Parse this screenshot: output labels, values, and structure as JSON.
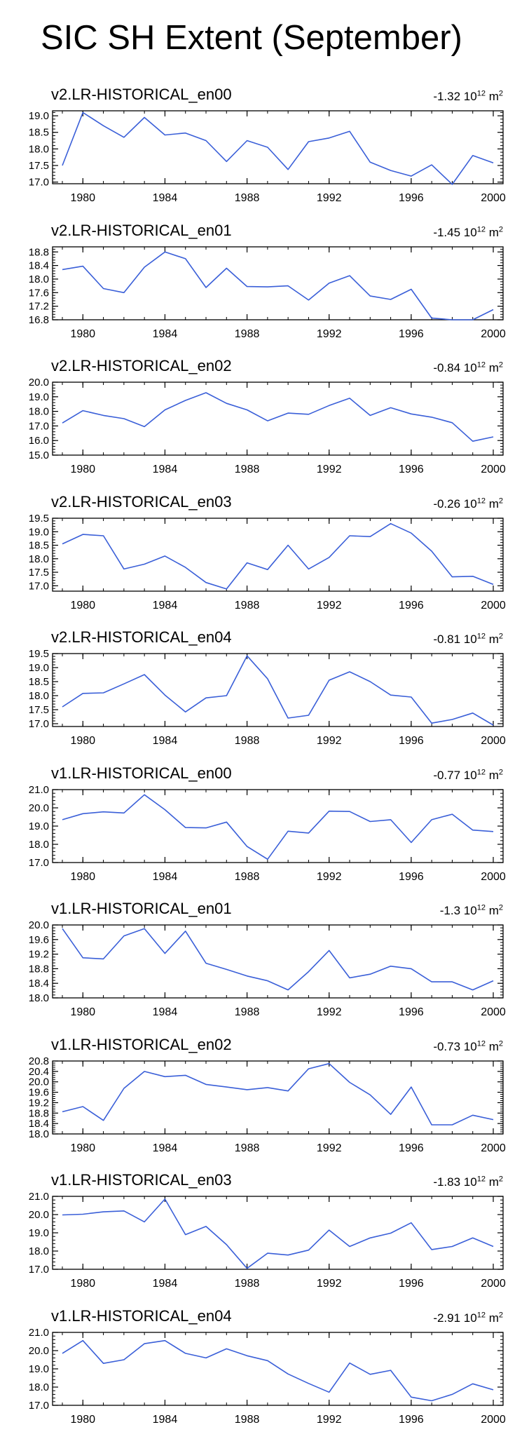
{
  "title": "SIC SH Extent (September)",
  "series_color": "#3a5fd8",
  "chart_data": [
    {
      "type": "line",
      "title": "v2.LR-HISTORICAL_en00",
      "trend": "-1.32",
      "trend_unit": "10",
      "trend_exp": "12",
      "trend_suffix": "m",
      "trend_suffix_exp": "2",
      "ylim": [
        16.95,
        19.15
      ],
      "yticks": [
        "19.0",
        "18.5",
        "18.0",
        "17.5",
        "17.0"
      ],
      "xticks": [
        "1980",
        "1984",
        "1988",
        "1992",
        "1996",
        "2000"
      ],
      "xlim": [
        1979,
        2000
      ],
      "x": [
        1979,
        1980,
        1981,
        1982,
        1983,
        1984,
        1985,
        1986,
        1987,
        1988,
        1989,
        1990,
        1991,
        1992,
        1993,
        1994,
        1995,
        1996,
        1997,
        1998,
        1999,
        2000
      ],
      "values": [
        17.5,
        19.1,
        18.7,
        18.35,
        18.95,
        18.42,
        18.48,
        18.25,
        17.62,
        18.25,
        18.05,
        17.38,
        18.22,
        18.33,
        18.53,
        17.6,
        17.35,
        17.18,
        17.52,
        16.93,
        17.8,
        17.58
      ]
    },
    {
      "type": "line",
      "title": "v2.LR-HISTORICAL_en01",
      "trend": "-1.45",
      "trend_unit": "10",
      "trend_exp": "12",
      "trend_suffix": "m",
      "trend_suffix_exp": "2",
      "ylim": [
        16.8,
        18.95
      ],
      "yticks": [
        "18.8",
        "18.4",
        "18.0",
        "17.6",
        "17.2",
        "16.8"
      ],
      "xticks": [
        "1980",
        "1984",
        "1988",
        "1992",
        "1996",
        "2000"
      ],
      "xlim": [
        1979,
        2000
      ],
      "x": [
        1979,
        1980,
        1981,
        1982,
        1983,
        1984,
        1985,
        1986,
        1987,
        1988,
        1989,
        1990,
        1991,
        1992,
        1993,
        1994,
        1995,
        1996,
        1997,
        1998,
        1999,
        2000
      ],
      "values": [
        18.28,
        18.38,
        17.72,
        17.6,
        18.35,
        18.8,
        18.6,
        17.75,
        18.32,
        17.78,
        17.77,
        17.8,
        17.38,
        17.88,
        18.1,
        17.5,
        17.4,
        17.7,
        16.85,
        16.8,
        16.8,
        17.1
      ]
    },
    {
      "type": "line",
      "title": "v2.LR-HISTORICAL_en02",
      "trend": "-0.84",
      "trend_unit": "10",
      "trend_exp": "12",
      "trend_suffix": "m",
      "trend_suffix_exp": "2",
      "ylim": [
        15.0,
        20.0
      ],
      "yticks": [
        "20.0",
        "19.0",
        "18.0",
        "17.0",
        "16.0",
        "15.0"
      ],
      "xticks": [
        "1980",
        "1984",
        "1988",
        "1992",
        "1996",
        "2000"
      ],
      "xlim": [
        1979,
        2000
      ],
      "x": [
        1979,
        1980,
        1981,
        1982,
        1983,
        1984,
        1985,
        1986,
        1987,
        1988,
        1989,
        1990,
        1991,
        1992,
        1993,
        1994,
        1995,
        1996,
        1997,
        1998,
        1999,
        2000
      ],
      "values": [
        17.2,
        18.05,
        17.72,
        17.5,
        16.95,
        18.1,
        18.75,
        19.28,
        18.55,
        18.1,
        17.35,
        17.88,
        17.8,
        18.4,
        18.9,
        17.72,
        18.25,
        17.82,
        17.6,
        17.22,
        15.95,
        16.25
      ]
    },
    {
      "type": "line",
      "title": "v2.LR-HISTORICAL_en03",
      "trend": "-0.26",
      "trend_unit": "10",
      "trend_exp": "12",
      "trend_suffix": "m",
      "trend_suffix_exp": "2",
      "ylim": [
        16.8,
        19.5
      ],
      "yticks": [
        "19.5",
        "19.0",
        "18.5",
        "18.0",
        "17.5",
        "17.0"
      ],
      "xticks": [
        "1980",
        "1984",
        "1988",
        "1992",
        "1996",
        "2000"
      ],
      "xlim": [
        1979,
        2000
      ],
      "x": [
        1979,
        1980,
        1981,
        1982,
        1983,
        1984,
        1985,
        1986,
        1987,
        1988,
        1989,
        1990,
        1991,
        1992,
        1993,
        1994,
        1995,
        1996,
        1997,
        1998,
        1999,
        2000
      ],
      "values": [
        18.55,
        18.9,
        18.85,
        17.62,
        17.8,
        18.1,
        17.68,
        17.12,
        16.88,
        17.85,
        17.6,
        18.5,
        17.62,
        18.05,
        18.85,
        18.82,
        19.3,
        18.95,
        18.28,
        17.33,
        17.35,
        17.05
      ]
    },
    {
      "type": "line",
      "title": "v2.LR-HISTORICAL_en04",
      "trend": "-0.81",
      "trend_unit": "10",
      "trend_exp": "12",
      "trend_suffix": "m",
      "trend_suffix_exp": "2",
      "ylim": [
        16.9,
        19.5
      ],
      "yticks": [
        "19.5",
        "19.0",
        "18.5",
        "18.0",
        "17.5",
        "17.0"
      ],
      "xticks": [
        "1980",
        "1984",
        "1988",
        "1992",
        "1996",
        "2000"
      ],
      "xlim": [
        1979,
        2000
      ],
      "x": [
        1979,
        1980,
        1981,
        1982,
        1983,
        1984,
        1985,
        1986,
        1987,
        1988,
        1989,
        1990,
        1991,
        1992,
        1993,
        1994,
        1995,
        1996,
        1997,
        1998,
        1999,
        2000
      ],
      "values": [
        17.6,
        18.08,
        18.1,
        18.42,
        18.75,
        18.02,
        17.42,
        17.92,
        18.0,
        19.42,
        18.6,
        17.2,
        17.3,
        18.55,
        18.85,
        18.5,
        18.02,
        17.95,
        17.02,
        17.15,
        17.38,
        16.95
      ]
    },
    {
      "type": "line",
      "title": "v1.LR-HISTORICAL_en00",
      "trend": "-0.77",
      "trend_unit": "10",
      "trend_exp": "12",
      "trend_suffix": "m",
      "trend_suffix_exp": "2",
      "ylim": [
        17.0,
        21.0
      ],
      "yticks": [
        "21.0",
        "20.0",
        "19.0",
        "18.0",
        "17.0"
      ],
      "xticks": [
        "1980",
        "1984",
        "1988",
        "1992",
        "1996",
        "2000"
      ],
      "xlim": [
        1979,
        2000
      ],
      "x": [
        1979,
        1980,
        1981,
        1982,
        1983,
        1984,
        1985,
        1986,
        1987,
        1988,
        1989,
        1990,
        1991,
        1992,
        1993,
        1994,
        1995,
        1996,
        1997,
        1998,
        1999,
        2000
      ],
      "values": [
        19.35,
        19.68,
        19.78,
        19.72,
        20.72,
        19.9,
        18.92,
        18.9,
        19.22,
        17.88,
        17.18,
        18.72,
        18.62,
        19.82,
        19.8,
        19.25,
        19.35,
        18.1,
        19.35,
        19.65,
        18.78,
        18.7
      ]
    },
    {
      "type": "line",
      "title": "v1.LR-HISTORICAL_en01",
      "trend": "-1.3",
      "trend_unit": "10",
      "trend_exp": "12",
      "trend_suffix": "m",
      "trend_suffix_exp": "2",
      "ylim": [
        18.0,
        20.0
      ],
      "yticks": [
        "20.0",
        "19.6",
        "19.2",
        "18.8",
        "18.4",
        "18.0"
      ],
      "xticks": [
        "1980",
        "1984",
        "1988",
        "1992",
        "1996",
        "2000"
      ],
      "xlim": [
        1979,
        2000
      ],
      "x": [
        1979,
        1980,
        1981,
        1982,
        1983,
        1984,
        1985,
        1986,
        1987,
        1988,
        1989,
        1990,
        1991,
        1992,
        1993,
        1994,
        1995,
        1996,
        1997,
        1998,
        1999,
        2000
      ],
      "values": [
        19.9,
        19.1,
        19.07,
        19.7,
        19.9,
        19.22,
        19.83,
        18.95,
        18.78,
        18.6,
        18.47,
        18.22,
        18.72,
        19.3,
        18.55,
        18.65,
        18.87,
        18.8,
        18.44,
        18.44,
        18.22,
        18.47
      ]
    },
    {
      "type": "line",
      "title": "v1.LR-HISTORICAL_en02",
      "trend": "-0.73",
      "trend_unit": "10",
      "trend_exp": "12",
      "trend_suffix": "m",
      "trend_suffix_exp": "2",
      "ylim": [
        18.0,
        20.8
      ],
      "yticks": [
        "20.8",
        "20.4",
        "20.0",
        "19.6",
        "19.2",
        "18.8",
        "18.4",
        "18.0"
      ],
      "xticks": [
        "1980",
        "1984",
        "1988",
        "1992",
        "1996",
        "2000"
      ],
      "xlim": [
        1979,
        2000
      ],
      "x": [
        1979,
        1980,
        1981,
        1982,
        1983,
        1984,
        1985,
        1986,
        1987,
        1988,
        1989,
        1990,
        1991,
        1992,
        1993,
        1994,
        1995,
        1996,
        1997,
        1998,
        1999,
        2000
      ],
      "values": [
        18.85,
        19.05,
        18.52,
        19.75,
        20.4,
        20.2,
        20.25,
        19.9,
        19.8,
        19.7,
        19.78,
        19.65,
        20.5,
        20.7,
        19.98,
        19.5,
        18.75,
        19.8,
        18.35,
        18.35,
        18.72,
        18.55
      ]
    },
    {
      "type": "line",
      "title": "v1.LR-HISTORICAL_en03",
      "trend": "-1.83",
      "trend_unit": "10",
      "trend_exp": "12",
      "trend_suffix": "m",
      "trend_suffix_exp": "2",
      "ylim": [
        17.0,
        21.0
      ],
      "yticks": [
        "21.0",
        "20.0",
        "19.0",
        "18.0",
        "17.0"
      ],
      "xticks": [
        "1980",
        "1984",
        "1988",
        "1992",
        "1996",
        "2000"
      ],
      "xlim": [
        1979,
        2000
      ],
      "x": [
        1979,
        1980,
        1981,
        1982,
        1983,
        1984,
        1985,
        1986,
        1987,
        1988,
        1989,
        1990,
        1991,
        1992,
        1993,
        1994,
        1995,
        1996,
        1997,
        1998,
        1999,
        2000
      ],
      "values": [
        19.98,
        20.02,
        20.15,
        20.2,
        19.6,
        20.85,
        18.9,
        19.35,
        18.35,
        17.05,
        17.88,
        17.78,
        18.05,
        19.15,
        18.25,
        18.72,
        18.98,
        19.55,
        18.08,
        18.25,
        18.72,
        18.25
      ]
    },
    {
      "type": "line",
      "title": "v1.LR-HISTORICAL_en04",
      "trend": "-2.91",
      "trend_unit": "10",
      "trend_exp": "12",
      "trend_suffix": "m",
      "trend_suffix_exp": "2",
      "ylim": [
        17.0,
        21.0
      ],
      "yticks": [
        "21.0",
        "20.0",
        "19.0",
        "18.0",
        "17.0"
      ],
      "xticks": [
        "1980",
        "1984",
        "1988",
        "1992",
        "1996",
        "2000"
      ],
      "xlim": [
        1979,
        2000
      ],
      "x": [
        1979,
        1980,
        1981,
        1982,
        1983,
        1984,
        1985,
        1986,
        1987,
        1988,
        1989,
        1990,
        1991,
        1992,
        1993,
        1994,
        1995,
        1996,
        1997,
        1998,
        1999,
        2000
      ],
      "values": [
        19.85,
        20.55,
        19.3,
        19.5,
        20.38,
        20.55,
        19.85,
        19.6,
        20.1,
        19.72,
        19.45,
        18.72,
        18.2,
        17.72,
        19.32,
        18.7,
        18.92,
        17.45,
        17.25,
        17.6,
        18.18,
        17.85
      ]
    }
  ]
}
